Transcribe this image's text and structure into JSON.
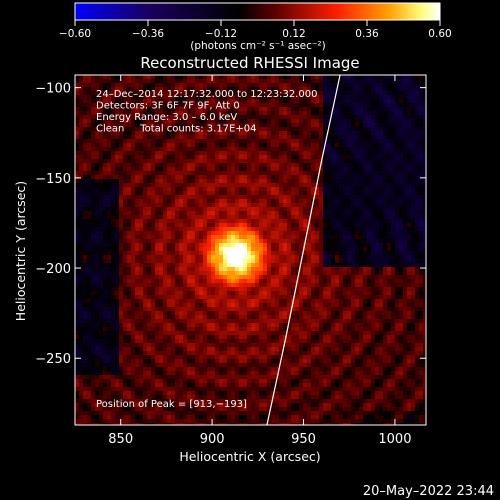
{
  "chart_data": {
    "type": "heatmap",
    "title": "Reconstructed RHESSI Image",
    "xlabel": "Heliocentric X (arcsec)",
    "ylabel": "Heliocentric Y (arcsec)",
    "xlim": [
      825,
      1017
    ],
    "ylim": [
      -287,
      -93
    ],
    "x_ticks": [
      850,
      900,
      950,
      1000
    ],
    "x_tick_labels": [
      "850",
      "900",
      "950",
      "1000"
    ],
    "y_ticks": [
      -100,
      -150,
      -200,
      -250
    ],
    "y_tick_labels": [
      "−100",
      "−150",
      "−200",
      "−250"
    ],
    "colorbar": {
      "range": [
        -0.6,
        0.6
      ],
      "ticks": [
        -0.6,
        -0.36,
        -0.12,
        0.12,
        0.36,
        0.6
      ],
      "tick_labels": [
        "−0.60",
        "−0.36",
        "−0.12",
        "0.12",
        "0.36",
        "0.60"
      ],
      "colors": [
        "#0000ff",
        "#1a0060",
        "#000000",
        "#600000",
        "#ff2000",
        "#ffa000",
        "#ffff80",
        "#ffffff"
      ],
      "units_label": "(photons cm⁻² s⁻¹ asec⁻²)"
    },
    "info_lines": [
      "24–Dec–2014 12:17:32.000 to 12:23:32.000",
      "Detectors: 3F 6F 7F 9F, Att 0",
      "Energy Range: 3.0 – 6.0 keV",
      "Clean     Total counts: 3.17E+04"
    ],
    "peak": {
      "x": 913,
      "y": -193,
      "label": "Position of Peak = [913,−193]"
    },
    "limb": [
      [
        970,
        -93
      ],
      [
        960,
        -140
      ],
      [
        950,
        -190
      ],
      [
        940,
        -240
      ],
      [
        930,
        -287
      ]
    ],
    "date_stamp": "20–May–2022 23:44"
  }
}
